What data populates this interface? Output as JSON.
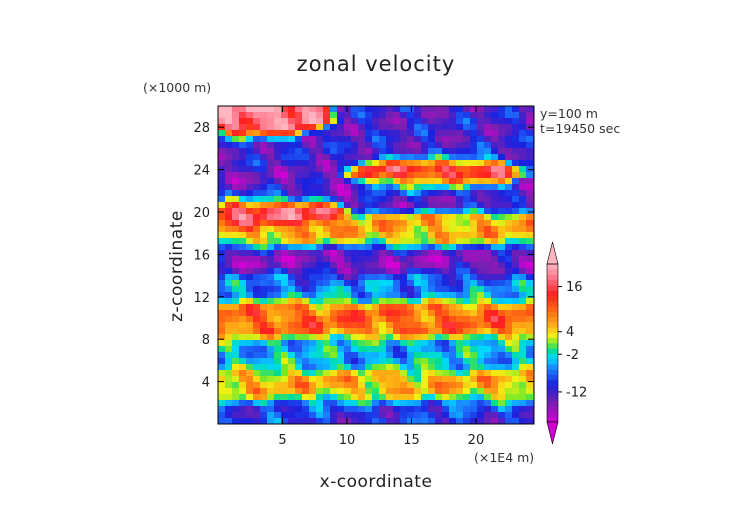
{
  "chart_data": {
    "type": "heatmap",
    "title": "zonal velocity",
    "xlabel": "x-coordinate",
    "ylabel": "z-coordinate",
    "x_scale_note": "(×1E4 m)",
    "y_scale_note": "(×1000 m)",
    "annotations": [
      "y=100 m",
      "t=19450 sec"
    ],
    "x_ticks": [
      "5",
      "10",
      "15",
      "20"
    ],
    "y_ticks": [
      "4",
      "8",
      "12",
      "16",
      "20",
      "24",
      "28"
    ],
    "xlim": [
      0,
      24.5
    ],
    "ylim": [
      0,
      30
    ],
    "colorbar": {
      "labels": [
        "16",
        "4",
        "-2",
        "-12"
      ],
      "label_values": [
        16,
        4,
        -2,
        -12
      ],
      "range": [
        -20,
        22
      ],
      "extend": "both"
    },
    "field_bands": [
      {
        "z_range": [
          0,
          2
        ],
        "x_range": [
          0,
          24.5
        ],
        "u": -10
      },
      {
        "z_range": [
          2,
          5
        ],
        "x_range": [
          0,
          24.5
        ],
        "u": 6
      },
      {
        "z_range": [
          5,
          8
        ],
        "x_range": [
          0,
          24.5
        ],
        "u": -4
      },
      {
        "z_range": [
          8,
          12
        ],
        "x_range": [
          0,
          24.5
        ],
        "u": 10
      },
      {
        "z_range": [
          12,
          14
        ],
        "x_range": [
          0,
          24.5
        ],
        "u": -6
      },
      {
        "z_range": [
          14,
          17
        ],
        "x_range": [
          0,
          24.5
        ],
        "u": -16
      },
      {
        "z_range": [
          17,
          19
        ],
        "x_range": [
          0,
          24.5
        ],
        "u": 6
      },
      {
        "z_range": [
          19,
          21
        ],
        "x_range": [
          1,
          8
        ],
        "u": 20
      },
      {
        "z_range": [
          21,
          23
        ],
        "x_range": [
          0,
          24.5
        ],
        "u": -14
      },
      {
        "z_range": [
          22,
          25
        ],
        "x_range": [
          12,
          22
        ],
        "u": 20
      },
      {
        "z_range": [
          25,
          27
        ],
        "x_range": [
          0,
          24.5
        ],
        "u": -12
      },
      {
        "z_range": [
          27,
          30
        ],
        "x_range": [
          1,
          6
        ],
        "u": 20
      }
    ]
  },
  "colors": {
    "scale_low": "#d400d4",
    "scale_high": "#ffb6c1",
    "accent_purple": "#7a1fb0",
    "accent_blue": "#1a22e0",
    "accent_red": "#ff2020",
    "accent_orange": "#ff9a10"
  }
}
